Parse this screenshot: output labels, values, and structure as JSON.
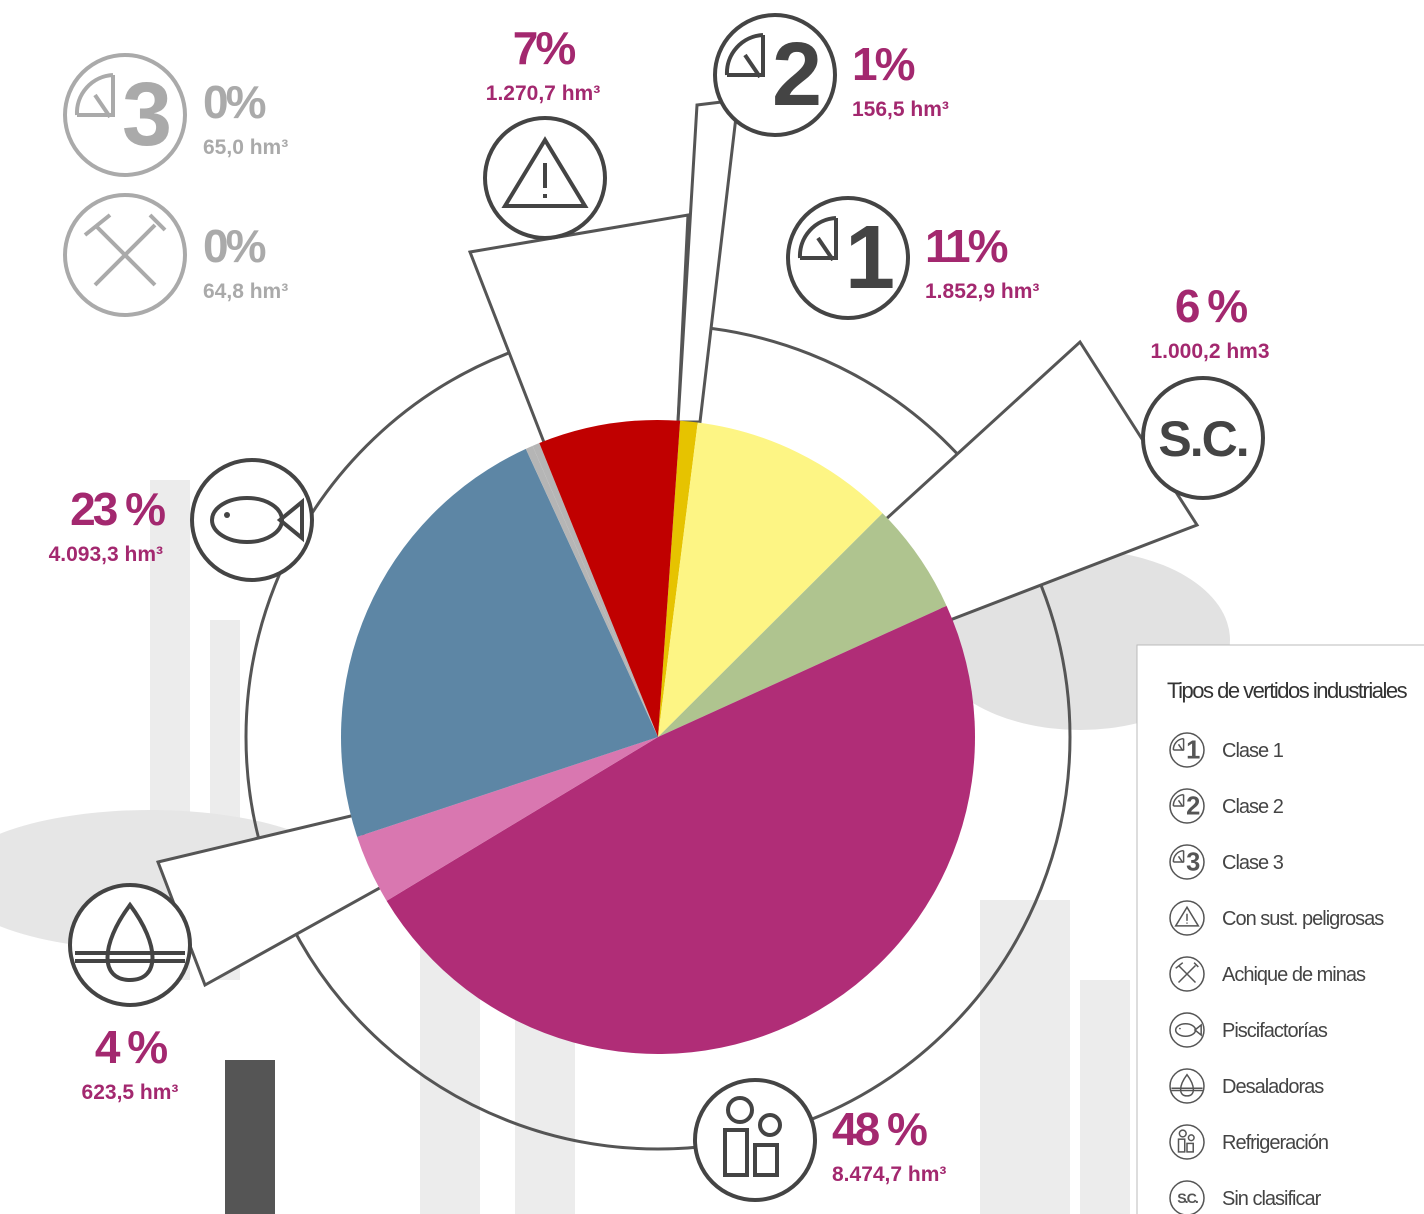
{
  "chart_data": {
    "type": "pie",
    "legend_title": "Tipos de vertidos industriales",
    "categories": [
      "Clase 1",
      "Clase 2",
      "Clase 3",
      "Con sust. peligrosas",
      "Achique de minas",
      "Piscifactorías",
      "Desaladoras",
      "Refrigeración",
      "Sin clasificar"
    ],
    "values": [
      1852.9,
      156.5,
      65.0,
      1270.7,
      64.8,
      4093.3,
      623.5,
      8474.7,
      1000.2
    ],
    "value_labels": [
      "1.852,9 hm³",
      "156,5 hm³",
      "65,0 hm³",
      "1.270,7 hm³",
      "64,8 hm³",
      "4.093,3 hm³",
      "623,5 hm³",
      "8.474,7 hm³",
      "1.000,2 hm3"
    ],
    "shares": [
      11,
      1,
      0,
      7,
      0,
      23,
      4,
      48,
      6
    ],
    "share_labels": [
      "11%",
      "1%",
      "0%",
      "7%",
      "0%",
      "23 %",
      "4 %",
      "48 %",
      "6 %"
    ],
    "icon_labels": [
      "1",
      "2",
      "3",
      null,
      null,
      null,
      null,
      null,
      "S.C."
    ],
    "colors": [
      "#fdf584",
      "#e6c300",
      "#b5b5b5",
      "#c00000",
      "#b5b5b5",
      "#5d86a5",
      "#d977b0",
      "#b02d77",
      "#afc48f"
    ]
  }
}
